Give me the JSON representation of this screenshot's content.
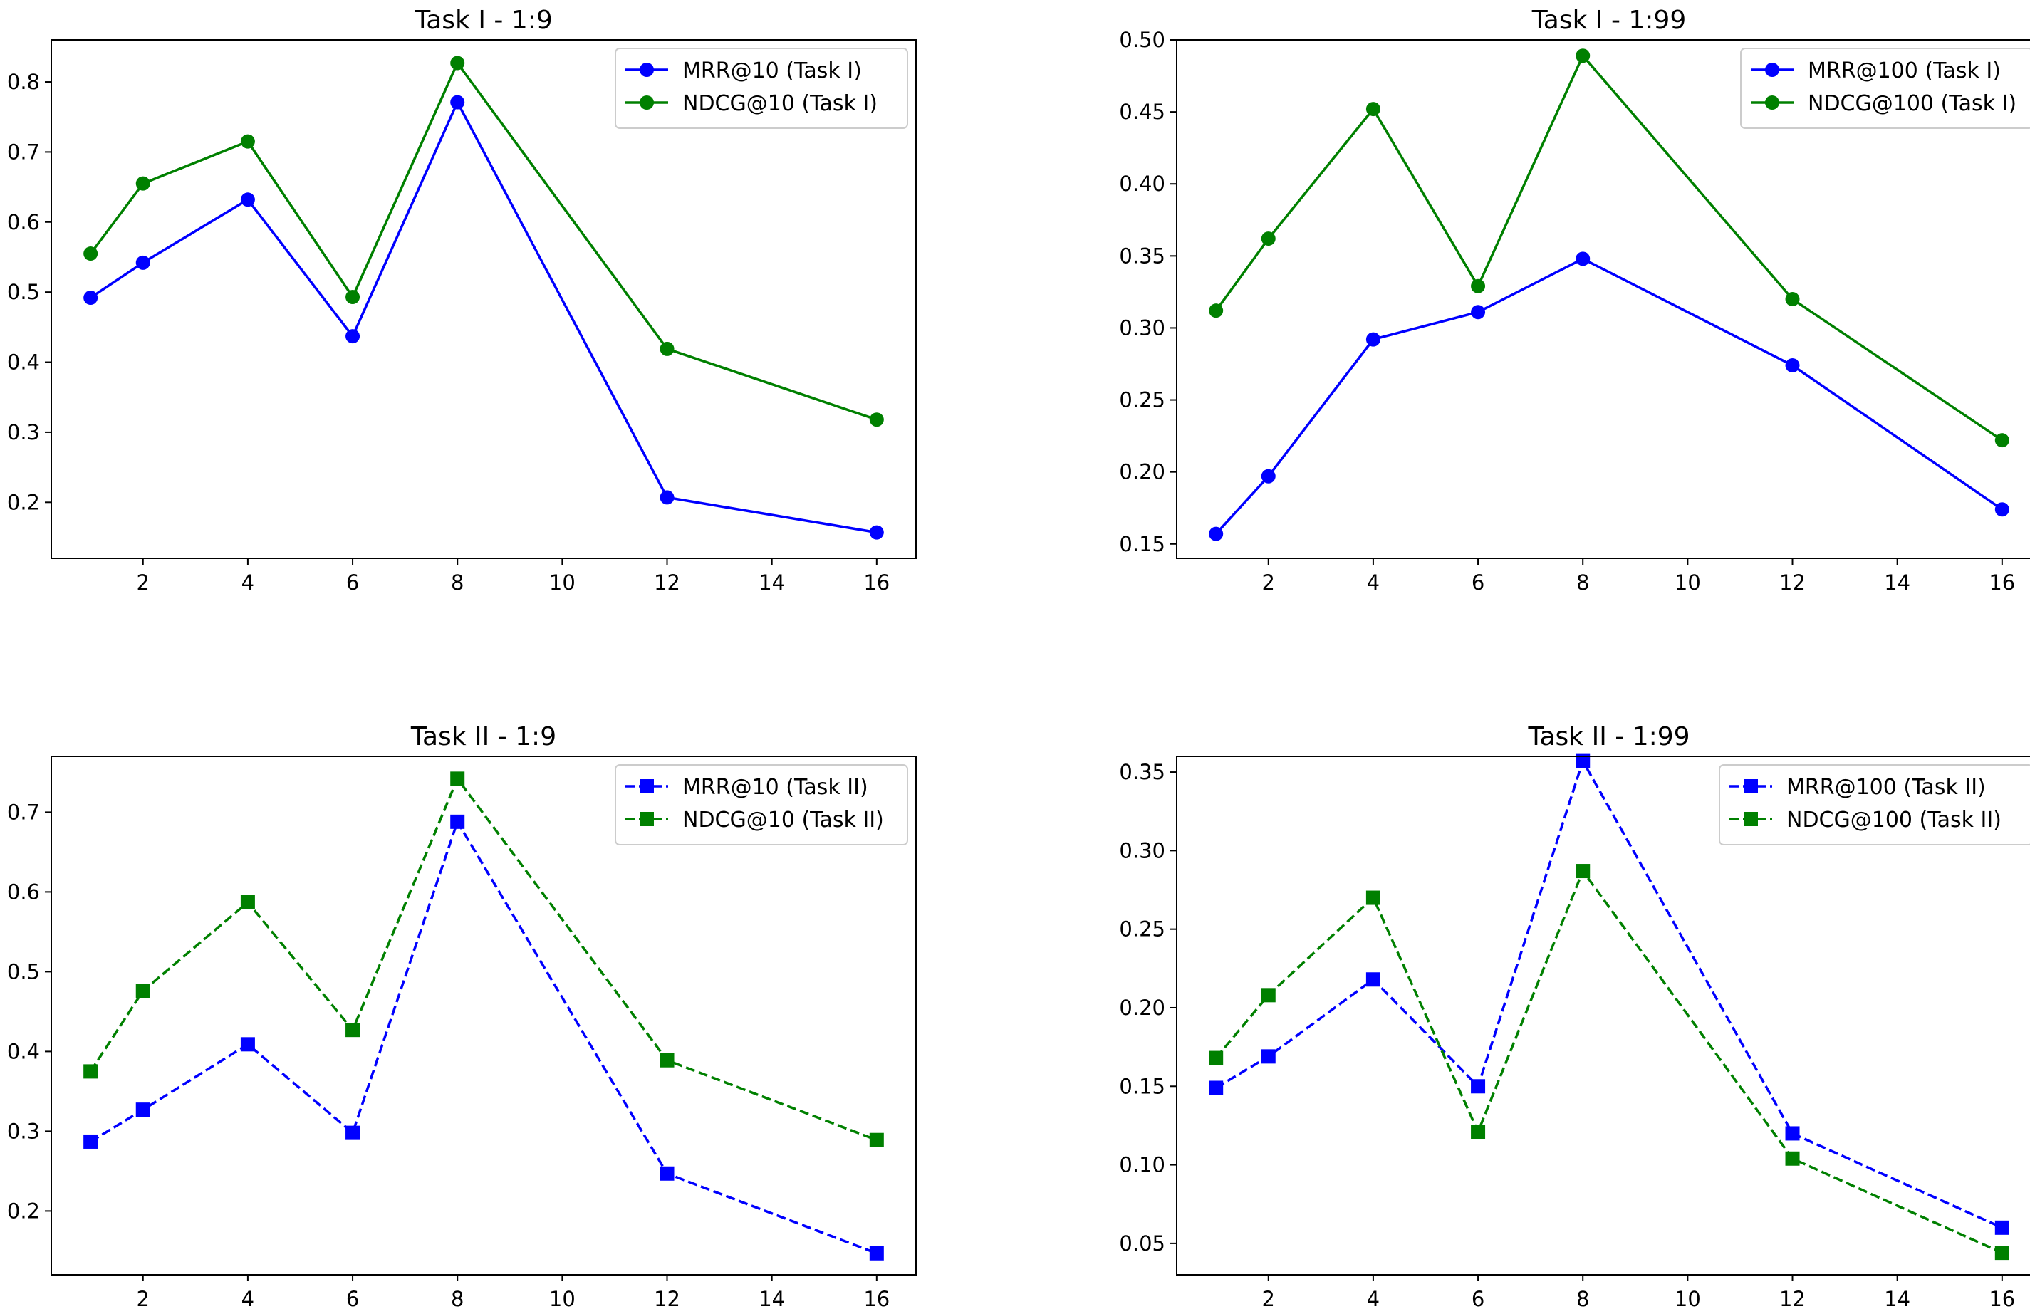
{
  "chart_data": [
    {
      "type": "line",
      "title": "Task I - 1:9",
      "x": [
        1,
        2,
        4,
        6,
        8,
        12,
        16
      ],
      "xlim": [
        0.25,
        16.75
      ],
      "ylim": [
        0.12,
        0.86
      ],
      "xticks": [
        2,
        4,
        6,
        8,
        10,
        12,
        14,
        16
      ],
      "yticks": [
        0.2,
        0.3,
        0.4,
        0.5,
        0.6,
        0.7,
        0.8
      ],
      "ytick_labels": [
        "0.2",
        "0.3",
        "0.4",
        "0.5",
        "0.6",
        "0.7",
        "0.8"
      ],
      "legend": "top-right",
      "series": [
        {
          "name": "MRR@10 (Task I)",
          "color": "#0000ff",
          "marker": "circle",
          "linestyle": "solid",
          "values": [
            0.492,
            0.542,
            0.632,
            0.437,
            0.771,
            0.207,
            0.157
          ]
        },
        {
          "name": "NDCG@10 (Task I)",
          "color": "#008000",
          "marker": "circle",
          "linestyle": "solid",
          "values": [
            0.555,
            0.655,
            0.715,
            0.493,
            0.827,
            0.419,
            0.318
          ]
        }
      ]
    },
    {
      "type": "line",
      "title": "Task I - 1:99",
      "x": [
        1,
        2,
        4,
        6,
        8,
        12,
        16
      ],
      "xlim": [
        0.25,
        16.75
      ],
      "ylim": [
        0.14,
        0.5
      ],
      "xticks": [
        2,
        4,
        6,
        8,
        10,
        12,
        14,
        16
      ],
      "yticks": [
        0.15,
        0.2,
        0.25,
        0.3,
        0.35,
        0.4,
        0.45,
        0.5
      ],
      "ytick_labels": [
        "0.15",
        "0.20",
        "0.25",
        "0.30",
        "0.35",
        "0.40",
        "0.45",
        "0.50"
      ],
      "legend": "top-right",
      "series": [
        {
          "name": "MRR@100 (Task I)",
          "color": "#0000ff",
          "marker": "circle",
          "linestyle": "solid",
          "values": [
            0.157,
            0.197,
            0.292,
            0.311,
            0.348,
            0.274,
            0.174
          ]
        },
        {
          "name": "NDCG@100 (Task I)",
          "color": "#008000",
          "marker": "circle",
          "linestyle": "solid",
          "values": [
            0.312,
            0.362,
            0.452,
            0.329,
            0.489,
            0.32,
            0.222
          ]
        }
      ]
    },
    {
      "type": "line",
      "title": "Task II - 1:9",
      "x": [
        1,
        2,
        4,
        6,
        8,
        12,
        16
      ],
      "xlim": [
        0.25,
        16.75
      ],
      "ylim": [
        0.12,
        0.77
      ],
      "xticks": [
        2,
        4,
        6,
        8,
        10,
        12,
        14,
        16
      ],
      "yticks": [
        0.2,
        0.3,
        0.4,
        0.5,
        0.6,
        0.7
      ],
      "ytick_labels": [
        "0.2",
        "0.3",
        "0.4",
        "0.5",
        "0.6",
        "0.7"
      ],
      "legend": "top-right",
      "series": [
        {
          "name": "MRR@10 (Task II)",
          "color": "#0000ff",
          "marker": "square",
          "linestyle": "dashed",
          "values": [
            0.287,
            0.327,
            0.409,
            0.298,
            0.688,
            0.247,
            0.147
          ]
        },
        {
          "name": "NDCG@10 (Task II)",
          "color": "#008000",
          "marker": "square",
          "linestyle": "dashed",
          "values": [
            0.375,
            0.476,
            0.587,
            0.427,
            0.742,
            0.389,
            0.289
          ]
        }
      ]
    },
    {
      "type": "line",
      "title": "Task II - 1:99",
      "x": [
        1,
        2,
        4,
        6,
        8,
        12,
        16
      ],
      "xlim": [
        0.25,
        16.75
      ],
      "ylim": [
        0.03,
        0.36
      ],
      "xticks": [
        2,
        4,
        6,
        8,
        10,
        12,
        14,
        16
      ],
      "yticks": [
        0.05,
        0.1,
        0.15,
        0.2,
        0.25,
        0.3,
        0.35
      ],
      "ytick_labels": [
        "0.05",
        "0.10",
        "0.15",
        "0.20",
        "0.25",
        "0.30",
        "0.35"
      ],
      "legend": "top-right",
      "series": [
        {
          "name": "MRR@100 (Task II)",
          "color": "#0000ff",
          "marker": "square",
          "linestyle": "dashed",
          "values": [
            0.149,
            0.169,
            0.218,
            0.15,
            0.357,
            0.12,
            0.06
          ]
        },
        {
          "name": "NDCG@100 (Task II)",
          "color": "#008000",
          "marker": "square",
          "linestyle": "dashed",
          "values": [
            0.168,
            0.208,
            0.27,
            0.121,
            0.287,
            0.104,
            0.044
          ]
        }
      ]
    }
  ]
}
